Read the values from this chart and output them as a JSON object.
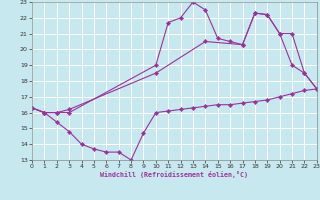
{
  "xlabel": "Windchill (Refroidissement éolien,°C)",
  "background_color": "#c8e8f0",
  "grid_color": "#ffffff",
  "line_color": "#993399",
  "xmin": 0,
  "xmax": 23,
  "ymin": 13,
  "ymax": 23,
  "series": [
    {
      "x": [
        0,
        1,
        2,
        3,
        4,
        5,
        6,
        7,
        8,
        9,
        10,
        11,
        12,
        13,
        14,
        15,
        16,
        17,
        18,
        19,
        20,
        21,
        22,
        23
      ],
      "y": [
        16.3,
        16.0,
        15.4,
        14.8,
        14.0,
        13.7,
        13.5,
        13.5,
        13.0,
        14.7,
        16.0,
        16.1,
        16.2,
        16.3,
        16.4,
        16.5,
        16.5,
        16.6,
        16.7,
        16.8,
        17.0,
        17.2,
        17.4,
        17.5
      ]
    },
    {
      "x": [
        0,
        1,
        2,
        3,
        10,
        11,
        12,
        13,
        14,
        15,
        16,
        17,
        18,
        19,
        20,
        21,
        22,
        23
      ],
      "y": [
        16.3,
        16.0,
        16.0,
        16.0,
        19.0,
        21.7,
        22.0,
        23.0,
        22.5,
        20.7,
        20.5,
        20.3,
        22.3,
        22.2,
        21.0,
        19.0,
        18.5,
        17.5
      ]
    },
    {
      "x": [
        0,
        1,
        2,
        3,
        10,
        14,
        17,
        18,
        19,
        20,
        21,
        22,
        23
      ],
      "y": [
        16.3,
        16.0,
        16.0,
        16.2,
        18.5,
        20.5,
        20.3,
        22.3,
        22.2,
        21.0,
        21.0,
        18.5,
        17.5
      ]
    }
  ]
}
